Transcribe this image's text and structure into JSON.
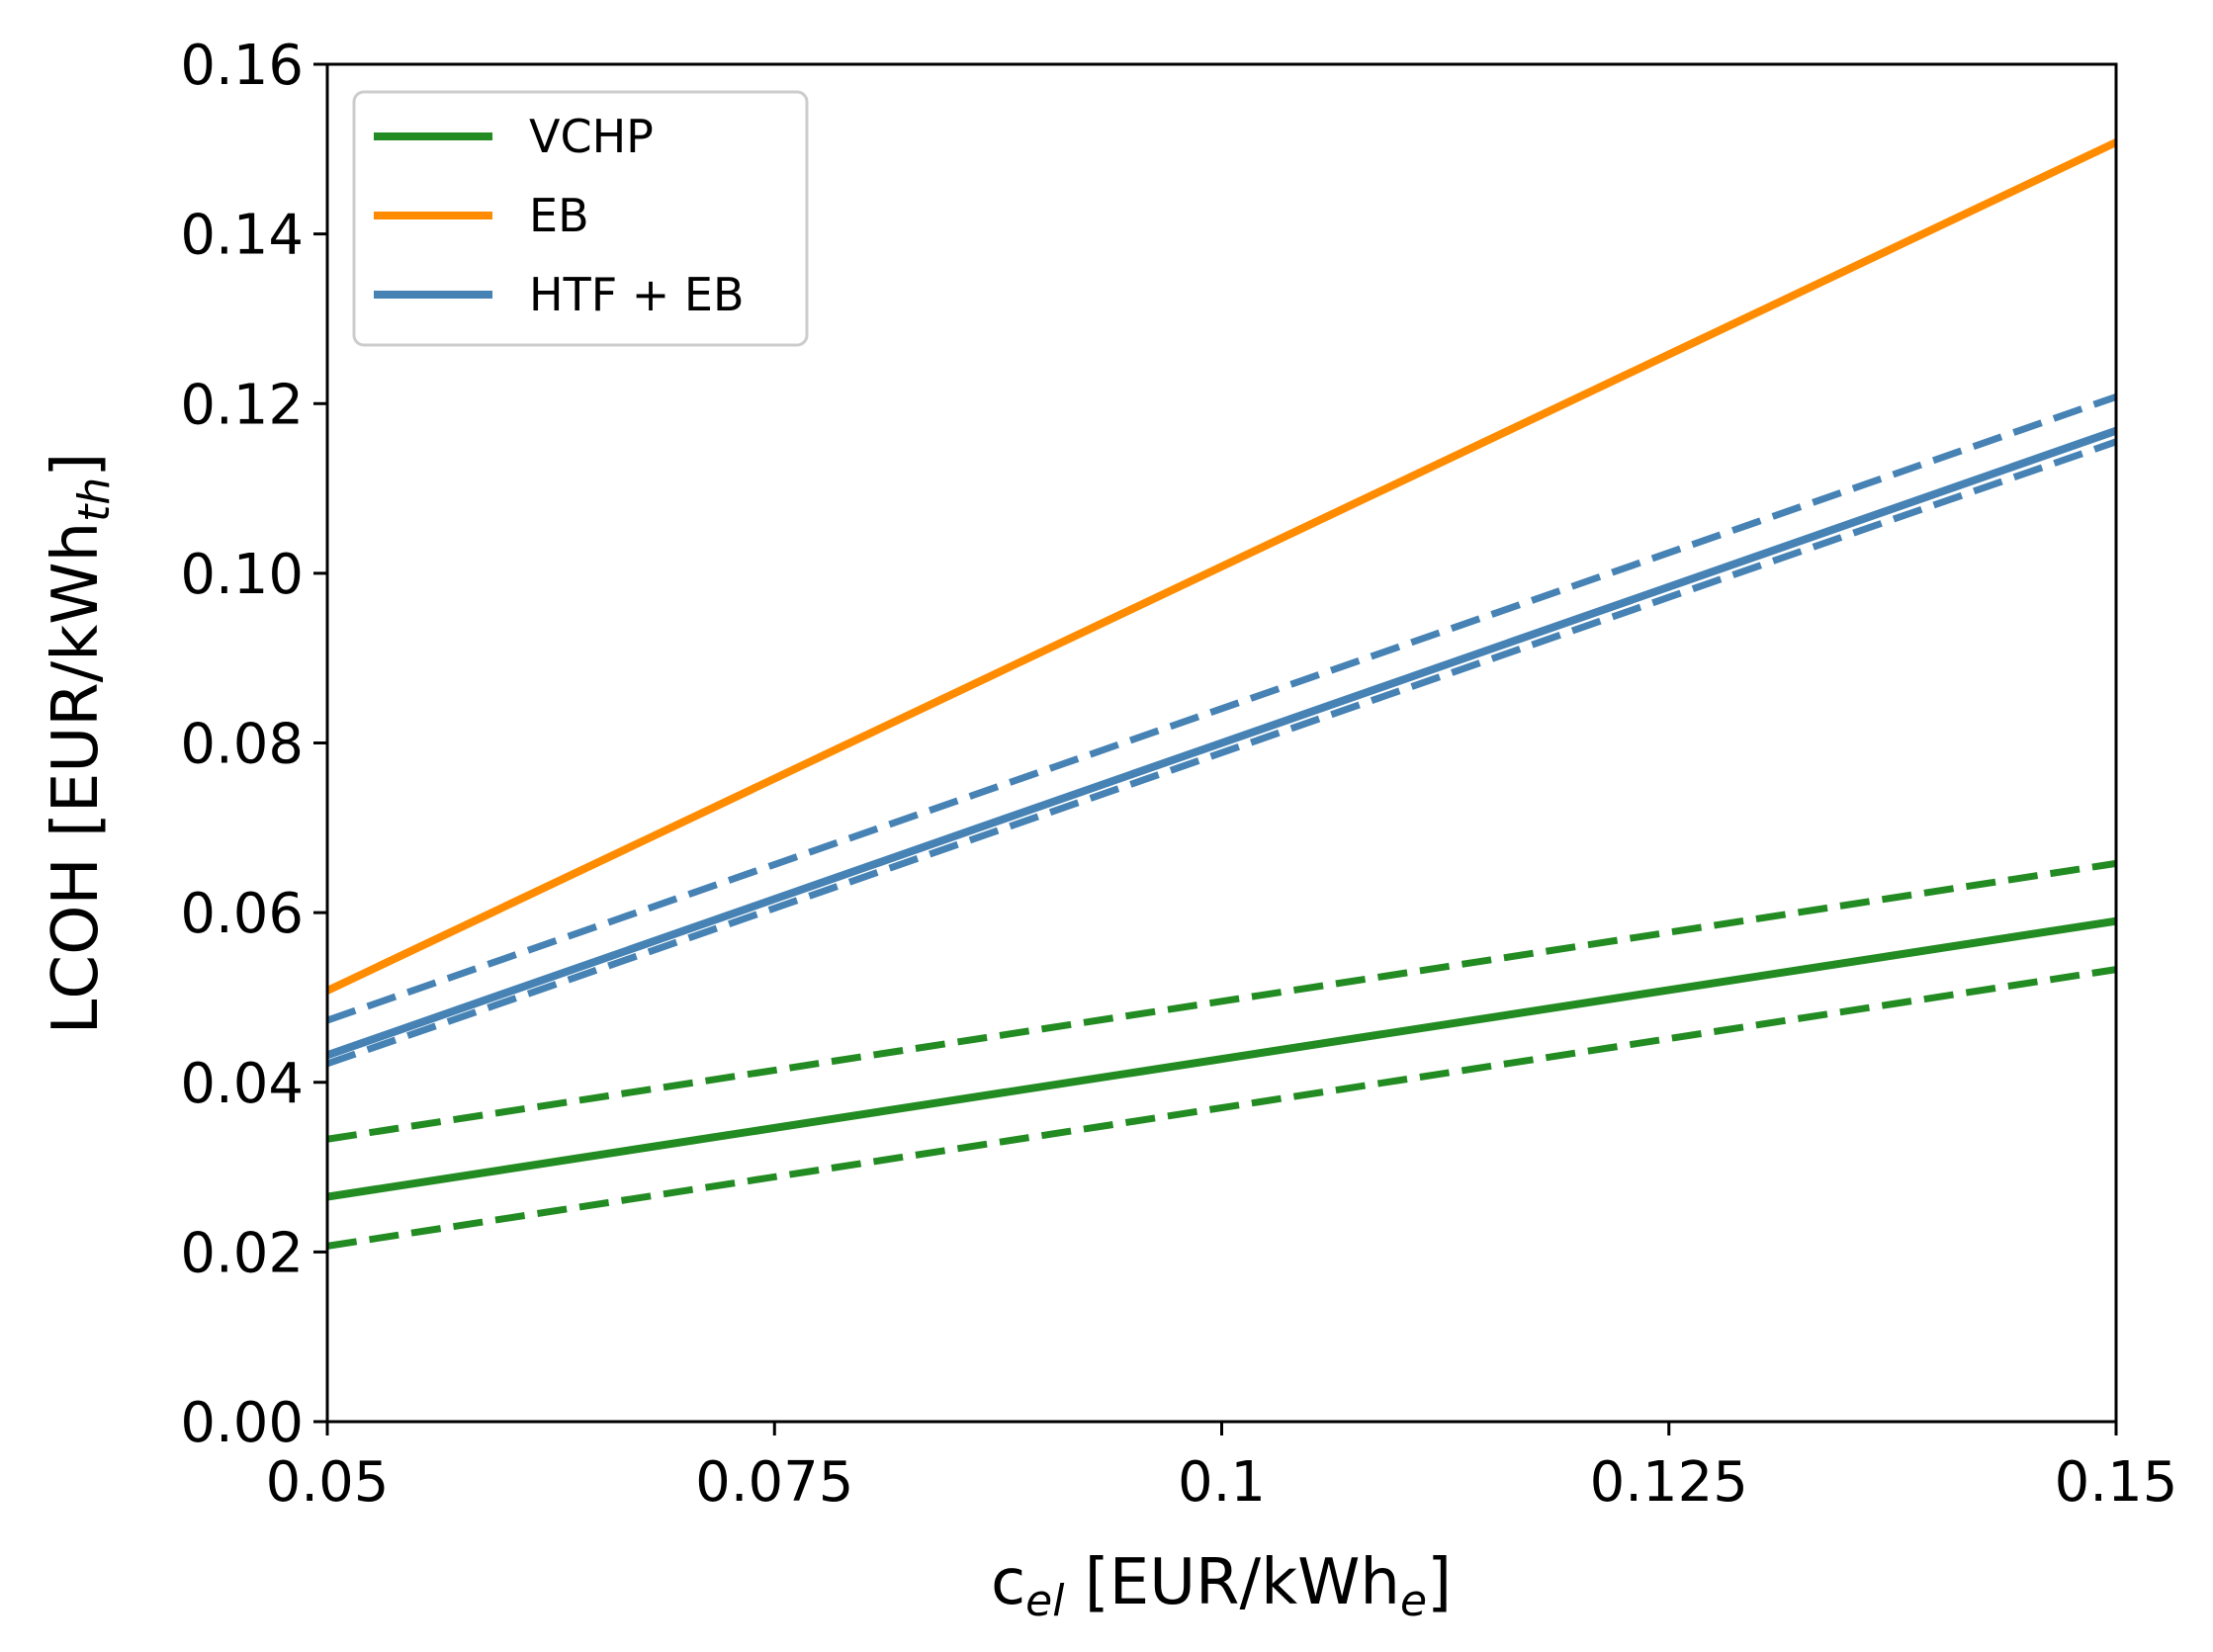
{
  "chart_data": {
    "type": "line",
    "xlabel": {
      "main": "c",
      "sub": "el",
      "rest": " [EUR/kWh",
      "sub2": "e",
      "end": "]"
    },
    "ylabel": {
      "main": "LCOH [EUR/kWh",
      "sub": "th",
      "end": "]"
    },
    "xlim": [
      0.05,
      0.15
    ],
    "ylim": [
      0.0,
      0.16
    ],
    "xticks": [
      {
        "value": 0.05,
        "label": "0.05"
      },
      {
        "value": 0.075,
        "label": "0.075"
      },
      {
        "value": 0.1,
        "label": "0.1"
      },
      {
        "value": 0.125,
        "label": "0.125"
      },
      {
        "value": 0.15,
        "label": "0.15"
      }
    ],
    "yticks": [
      {
        "value": 0.0,
        "label": "0.00"
      },
      {
        "value": 0.02,
        "label": "0.02"
      },
      {
        "value": 0.04,
        "label": "0.04"
      },
      {
        "value": 0.06,
        "label": "0.06"
      },
      {
        "value": 0.08,
        "label": "0.08"
      },
      {
        "value": 0.1,
        "label": "0.10"
      },
      {
        "value": 0.12,
        "label": "0.12"
      },
      {
        "value": 0.14,
        "label": "0.14"
      },
      {
        "value": 0.16,
        "label": "0.16"
      }
    ],
    "grid": false,
    "legend_position": "top-left",
    "legend": [
      {
        "label": "VCHP",
        "color": "#228b22"
      },
      {
        "label": "EB",
        "color": "#ff8c00"
      },
      {
        "label": "HTF + EB",
        "color": "#4682b4"
      }
    ],
    "series": [
      {
        "name": "VCHP",
        "role": "central",
        "style": "solid",
        "color": "#228b22",
        "x": [
          0.05,
          0.15
        ],
        "y": [
          0.0265,
          0.059
        ]
      },
      {
        "name": "VCHP upper",
        "role": "bound",
        "style": "dashed",
        "color": "#228b22",
        "x": [
          0.05,
          0.15
        ],
        "y": [
          0.0333,
          0.0658
        ]
      },
      {
        "name": "VCHP lower",
        "role": "bound",
        "style": "dashed",
        "color": "#228b22",
        "x": [
          0.05,
          0.15
        ],
        "y": [
          0.0207,
          0.0533
        ]
      },
      {
        "name": "EB",
        "role": "central",
        "style": "solid",
        "color": "#ff8c00",
        "x": [
          0.05,
          0.15
        ],
        "y": [
          0.0508,
          0.1508
        ]
      },
      {
        "name": "HTF + EB",
        "role": "central",
        "style": "solid",
        "color": "#4682b4",
        "x": [
          0.05,
          0.15
        ],
        "y": [
          0.0432,
          0.1168
        ]
      },
      {
        "name": "HTF + EB upper",
        "role": "bound",
        "style": "dashed",
        "color": "#4682b4",
        "x": [
          0.05,
          0.15
        ],
        "y": [
          0.0473,
          0.1208
        ]
      },
      {
        "name": "HTF + EB lower",
        "role": "bound",
        "style": "dashed",
        "color": "#4682b4",
        "x": [
          0.05,
          0.15
        ],
        "y": [
          0.0422,
          0.1155
        ]
      }
    ]
  }
}
